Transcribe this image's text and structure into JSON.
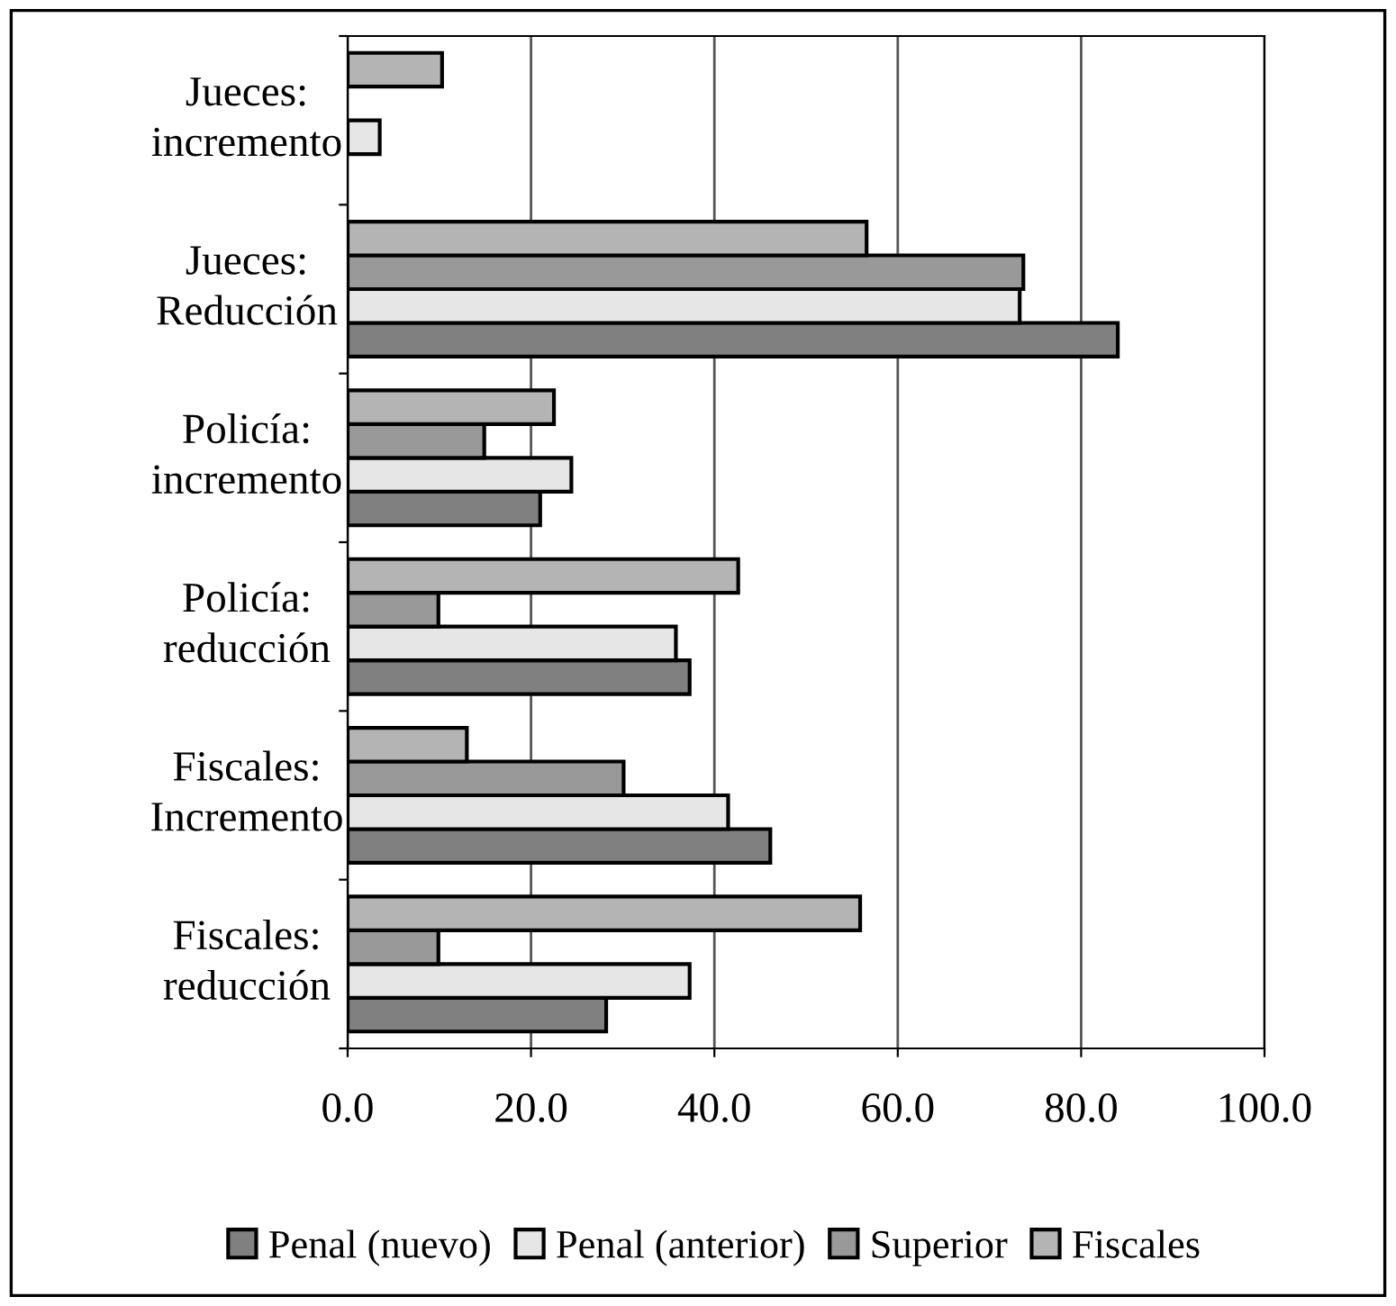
{
  "chart_data": {
    "type": "bar",
    "orientation": "horizontal",
    "categories": [
      "Jueces:\nincremento",
      "Jueces:\nReducción",
      "Policía:\nincremento",
      "Policía:\nreducción",
      "Fiscales:\nIncremento",
      "Fiscales:\nreducción"
    ],
    "series": [
      {
        "name": "Penal (nuevo)",
        "color": "#808080",
        "values": [
          null,
          84.0,
          21.0,
          37.3,
          46.1,
          28.2
        ]
      },
      {
        "name": "Penal (anterior)",
        "color": "#e6e6e6",
        "values": [
          3.5,
          73.3,
          24.4,
          35.8,
          41.5,
          37.3
        ]
      },
      {
        "name": "Superior",
        "color": "#999999",
        "values": [
          null,
          73.7,
          14.9,
          9.9,
          30.1,
          9.9
        ]
      },
      {
        "name": "Fiscales",
        "color": "#b4b4b4",
        "values": [
          10.3,
          56.6,
          22.5,
          42.6,
          13.0,
          55.9
        ]
      }
    ],
    "xlim": [
      0,
      100
    ],
    "xticks": [
      {
        "value": 0,
        "label": "0.0"
      },
      {
        "value": 20,
        "label": "20.0"
      },
      {
        "value": 40,
        "label": "40.0"
      },
      {
        "value": 60,
        "label": "60.0"
      },
      {
        "value": 80,
        "label": "80.0"
      },
      {
        "value": 100,
        "label": "100.0"
      }
    ],
    "grid": "x",
    "legend": "bottom"
  }
}
